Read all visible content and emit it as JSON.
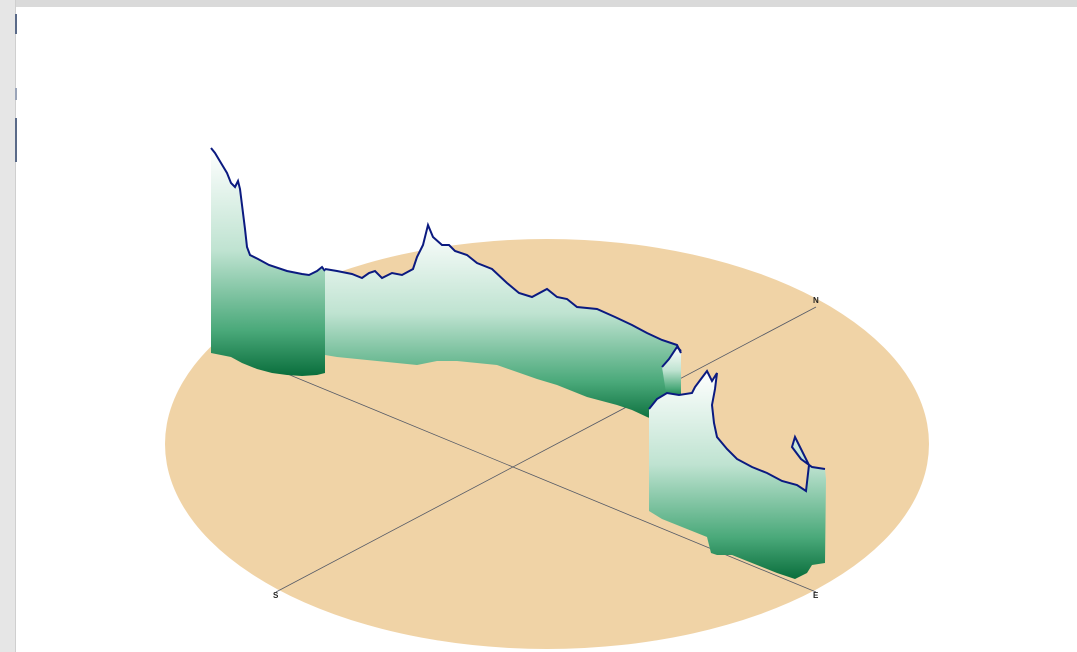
{
  "compass": {
    "north": "N",
    "south": "S",
    "east": "E"
  },
  "colors": {
    "ground": "#f0d3a6",
    "wall_top": "#f4fbf6",
    "wall_bottom": "#0d7a45",
    "profile_line": "#0b1a80",
    "axis_line": "#555a66"
  }
}
